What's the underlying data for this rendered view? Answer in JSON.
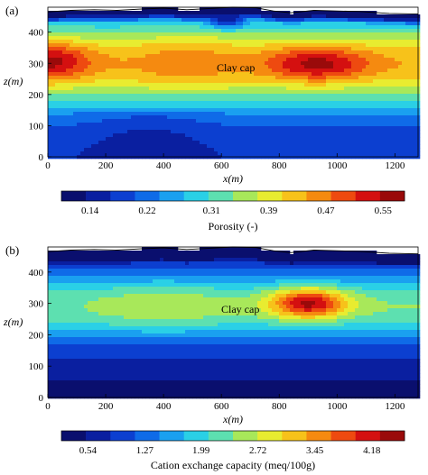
{
  "chart_data": [
    {
      "type": "heatmap",
      "panel_label": "(a)",
      "xlabel": "x(m)",
      "ylabel": "z(m)",
      "xlim": [
        0,
        1280
      ],
      "ylim": [
        0,
        480
      ],
      "xticks": [
        "0",
        "200",
        "400",
        "600",
        "800",
        "1000",
        "1200"
      ],
      "xtick_values": [
        0,
        200,
        400,
        600,
        800,
        1000,
        1200
      ],
      "yticks": [
        "0",
        "100",
        "200",
        "300",
        "400"
      ],
      "ytick_values": [
        0,
        100,
        200,
        300,
        400
      ],
      "annotation": "Clay cap",
      "colorbar_label": "Porosity (-)",
      "colorbar_ticks": [
        "0.14",
        "0.22",
        "0.31",
        "0.39",
        "0.47",
        "0.55"
      ],
      "colorbar_range": [
        0.1,
        0.58
      ],
      "grid": false,
      "surface_z": [
        465,
        470,
        472,
        470,
        474,
        477,
        472,
        476,
        480,
        478,
        468,
        462,
        470,
        468,
        466,
        460,
        458
      ],
      "surface_x": [
        0,
        80,
        160,
        240,
        320,
        400,
        480,
        560,
        640,
        720,
        780,
        840,
        920,
        1000,
        1080,
        1180,
        1280
      ],
      "highs": [
        {
          "x": 0,
          "z": 305,
          "value": 0.56,
          "sx": 140,
          "sz": 55
        },
        {
          "x": 930,
          "z": 298,
          "value": 0.56,
          "sx": 170,
          "sz": 50
        },
        {
          "x": 480,
          "z": 300,
          "value": 0.46,
          "sx": 180,
          "sz": 65
        },
        {
          "x": 620,
          "z": 440,
          "value": 0.14,
          "sx": 60,
          "sz": 25
        }
      ]
    },
    {
      "type": "heatmap",
      "panel_label": "(b)",
      "xlabel": "x(m)",
      "ylabel": "z(m)",
      "xlim": [
        0,
        1280
      ],
      "ylim": [
        0,
        480
      ],
      "xticks": [
        "0",
        "200",
        "400",
        "600",
        "800",
        "1000",
        "1200"
      ],
      "xtick_values": [
        0,
        200,
        400,
        600,
        800,
        1000,
        1200
      ],
      "yticks": [
        "0",
        "100",
        "200",
        "300",
        "400"
      ],
      "ytick_values": [
        0,
        100,
        200,
        300,
        400
      ],
      "annotation": "Clay cap",
      "colorbar_label": "Cation exchange capacity (meq/100g)",
      "colorbar_ticks": [
        "0.54",
        "1.27",
        "1.99",
        "2.72",
        "3.45",
        "4.18"
      ],
      "colorbar_range": [
        0.2,
        4.6
      ],
      "grid": false,
      "surface_z": [
        465,
        470,
        472,
        470,
        474,
        477,
        472,
        476,
        480,
        478,
        468,
        462,
        470,
        468,
        466,
        460,
        458
      ],
      "surface_x": [
        0,
        80,
        160,
        240,
        320,
        400,
        480,
        560,
        640,
        720,
        780,
        840,
        920,
        1000,
        1080,
        1180,
        1280
      ],
      "highs": [
        {
          "x": 900,
          "z": 300,
          "value": 4.4,
          "sx": 130,
          "sz": 45
        },
        {
          "x": 400,
          "z": 290,
          "value": 2.6,
          "sx": 220,
          "sz": 55
        },
        {
          "x": 30,
          "z": 290,
          "value": 2.3,
          "sx": 90,
          "sz": 40
        }
      ]
    }
  ]
}
